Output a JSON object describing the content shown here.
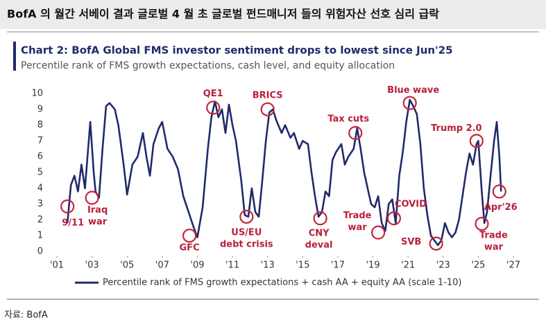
{
  "header": {
    "title": "BofA 의 월간 서베이 결과 글로벌 4 월 초 글로벌 펀드매니저 들의 위험자산 선호 심리 급락"
  },
  "chart_data": {
    "type": "line",
    "title": "Chart 2: BofA Global FMS investor sentiment drops to lowest since Jun'25",
    "subtitle": "Percentile rank of FMS growth expectations, cash level, and equity allocation",
    "xlim": [
      2000.8,
      2027.3
    ],
    "xticks": [
      {
        "value": 2001,
        "label": "'01"
      },
      {
        "value": 2003,
        "label": "'03"
      },
      {
        "value": 2005,
        "label": "'05"
      },
      {
        "value": 2007,
        "label": "'07"
      },
      {
        "value": 2009,
        "label": "'09"
      },
      {
        "value": 2011,
        "label": "'11"
      },
      {
        "value": 2013,
        "label": "'13"
      },
      {
        "value": 2015,
        "label": "'15"
      },
      {
        "value": 2017,
        "label": "'17"
      },
      {
        "value": 2019,
        "label": "'19"
      },
      {
        "value": 2021,
        "label": "'21"
      },
      {
        "value": 2023,
        "label": "'23"
      },
      {
        "value": 2025,
        "label": "'25"
      },
      {
        "value": 2027,
        "label": "'27"
      }
    ],
    "ylim": [
      0,
      10
    ],
    "yticks": [
      0,
      1,
      2,
      3,
      4,
      5,
      6,
      7,
      8,
      9,
      10
    ],
    "x": [
      2001.6,
      2001.8,
      2002.0,
      2002.2,
      2002.4,
      2002.6,
      2002.9,
      2003.1,
      2003.2,
      2003.4,
      2003.6,
      2003.8,
      2004.0,
      2004.3,
      2004.5,
      2004.8,
      2005.0,
      2005.3,
      2005.6,
      2005.9,
      2006.1,
      2006.3,
      2006.5,
      2006.8,
      2007.0,
      2007.3,
      2007.6,
      2007.9,
      2008.2,
      2008.5,
      2008.8,
      2009.0,
      2009.3,
      2009.6,
      2009.8,
      2010.0,
      2010.2,
      2010.4,
      2010.6,
      2010.8,
      2011.0,
      2011.2,
      2011.5,
      2011.7,
      2011.9,
      2012.1,
      2012.3,
      2012.5,
      2012.7,
      2012.9,
      2013.1,
      2013.3,
      2013.5,
      2013.8,
      2014.0,
      2014.3,
      2014.5,
      2014.8,
      2015.0,
      2015.3,
      2015.5,
      2015.7,
      2015.9,
      2016.1,
      2016.3,
      2016.5,
      2016.7,
      2016.9,
      2017.2,
      2017.4,
      2017.6,
      2017.9,
      2018.1,
      2018.3,
      2018.5,
      2018.7,
      2018.9,
      2019.1,
      2019.3,
      2019.5,
      2019.7,
      2019.9,
      2020.1,
      2020.3,
      2020.5,
      2020.7,
      2020.9,
      2021.1,
      2021.3,
      2021.5,
      2021.7,
      2021.9,
      2022.1,
      2022.3,
      2022.5,
      2022.7,
      2022.9,
      2023.1,
      2023.3,
      2023.5,
      2023.7,
      2023.9,
      2024.1,
      2024.3,
      2024.5,
      2024.7,
      2024.9,
      2025.0,
      2025.2,
      2025.35,
      2025.5,
      2025.7,
      2025.9,
      2026.05,
      2026.2,
      2026.3
    ],
    "series": [
      {
        "name": "Percentile rank of FMS growth expectations + cash AA + equity AA (scale 1-10)",
        "color": "#1f2a6b",
        "values": [
          1.8,
          4.2,
          4.8,
          3.8,
          5.5,
          4.0,
          8.2,
          5.0,
          3.8,
          3.4,
          6.5,
          9.2,
          9.4,
          9.0,
          8.0,
          5.5,
          3.6,
          5.5,
          6.0,
          7.5,
          6.0,
          4.8,
          6.8,
          7.8,
          8.2,
          6.5,
          6.0,
          5.2,
          3.5,
          2.5,
          1.5,
          0.9,
          2.8,
          6.5,
          8.5,
          9.5,
          8.5,
          9.0,
          7.5,
          9.3,
          8.0,
          7.0,
          4.5,
          2.3,
          2.2,
          4.0,
          2.5,
          2.2,
          4.5,
          7.0,
          8.8,
          9.0,
          8.3,
          7.5,
          8.0,
          7.2,
          7.5,
          6.5,
          7.0,
          6.8,
          5.0,
          3.5,
          2.2,
          2.5,
          3.8,
          3.5,
          5.8,
          6.3,
          6.8,
          5.5,
          6.0,
          6.5,
          7.8,
          6.5,
          5.0,
          4.0,
          3.0,
          2.8,
          3.5,
          1.8,
          1.3,
          3.0,
          3.3,
          1.8,
          4.8,
          6.3,
          8.2,
          9.6,
          9.2,
          8.7,
          6.8,
          4.0,
          2.3,
          1.0,
          0.7,
          0.4,
          0.7,
          1.8,
          1.2,
          0.9,
          1.2,
          2.0,
          3.5,
          5.0,
          6.2,
          5.5,
          6.8,
          7.0,
          3.8,
          1.8,
          2.5,
          4.8,
          7.0,
          8.2,
          6.0,
          3.8
        ]
      }
    ],
    "annotations": [
      {
        "lines": [
          "9/11"
        ],
        "x": 2001.6,
        "y": 2.85
      },
      {
        "lines": [
          "Iraq",
          "war"
        ],
        "x": 2003.0,
        "y": 3.4
      },
      {
        "lines": [
          "GFC"
        ],
        "x": 2008.55,
        "y": 1.0
      },
      {
        "lines": [
          "QE1"
        ],
        "x": 2009.9,
        "y": 9.1
      },
      {
        "lines": [
          "US/EU",
          "debt crisis"
        ],
        "x": 2011.8,
        "y": 2.2
      },
      {
        "lines": [
          "BRICS"
        ],
        "x": 2013.0,
        "y": 9.0
      },
      {
        "lines": [
          "CNY",
          "deval"
        ],
        "x": 2016.0,
        "y": 2.1
      },
      {
        "lines": [
          "Tax cuts"
        ],
        "x": 2018.0,
        "y": 7.5
      },
      {
        "lines": [
          "Trade",
          "war"
        ],
        "x": 2019.3,
        "y": 1.2
      },
      {
        "lines": [
          "COVID"
        ],
        "x": 2020.2,
        "y": 2.1
      },
      {
        "lines": [
          "Blue wave"
        ],
        "x": 2021.1,
        "y": 9.4
      },
      {
        "lines": [
          "SVB"
        ],
        "x": 2022.6,
        "y": 0.5
      },
      {
        "lines": [
          "Trump 2.0"
        ],
        "x": 2024.9,
        "y": 7.0
      },
      {
        "lines": [
          "Trade",
          "war"
        ],
        "x": 2025.2,
        "y": 1.75
      },
      {
        "lines": [
          "Apr'26"
        ],
        "x": 2026.2,
        "y": 3.8
      }
    ]
  },
  "source": "자료: BofA"
}
